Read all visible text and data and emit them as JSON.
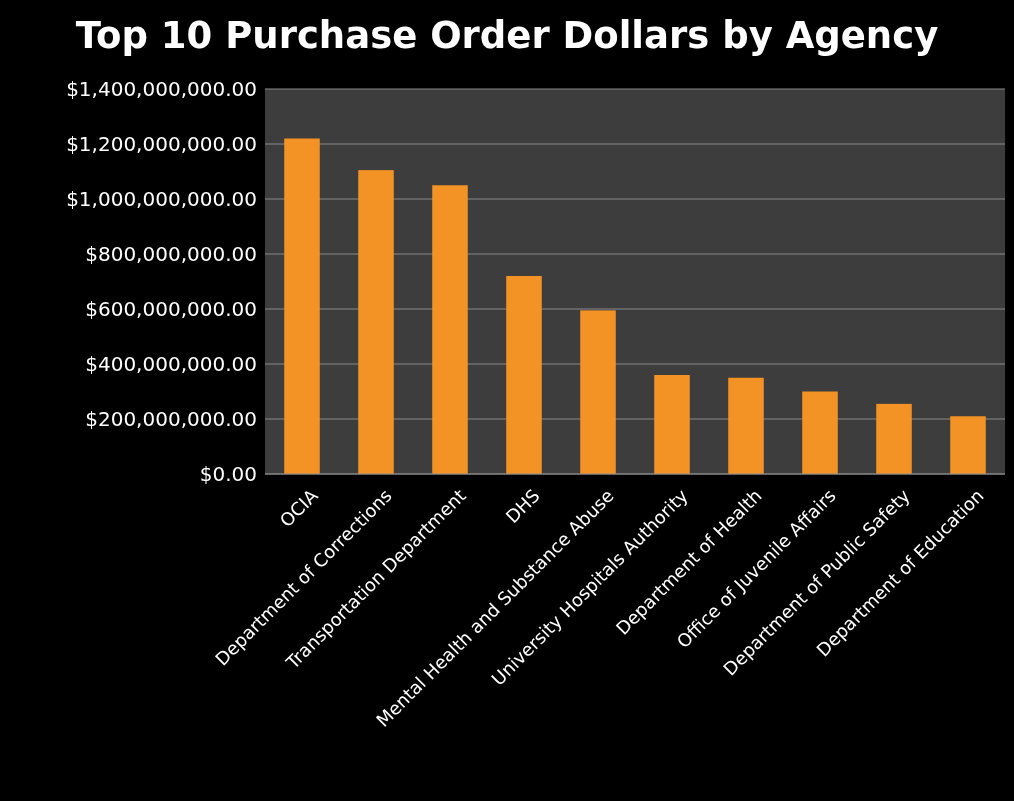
{
  "chart_data": {
    "type": "bar",
    "title": "Top 10 Purchase Order Dollars by Agency",
    "categories": [
      "OCIA",
      "Department of Corrections",
      "Transportation Department",
      "DHS",
      "Mental Health and Substance Abuse",
      "University Hospitals Authority",
      "Department of Health",
      "Office of Juvenile Affairs",
      "Department of Public Safety",
      "Department of Education"
    ],
    "values": [
      1220000000,
      1105000000,
      1050000000,
      720000000,
      595000000,
      360000000,
      350000000,
      300000000,
      255000000,
      210000000
    ],
    "color": "#f39325",
    "ylim": [
      0,
      1400000000
    ],
    "yticks": [
      {
        "value": 0,
        "label": "$0.00"
      },
      {
        "value": 200000000,
        "label": "$200,000,000.00"
      },
      {
        "value": 400000000,
        "label": "$400,000,000.00"
      },
      {
        "value": 600000000,
        "label": "$600,000,000.00"
      },
      {
        "value": 800000000,
        "label": "$800,000,000.00"
      },
      {
        "value": 1000000000,
        "label": "$1,000,000,000.00"
      },
      {
        "value": 1200000000,
        "label": "$1,200,000,000.00"
      },
      {
        "value": 1400000000,
        "label": "$1,400,000,000.00"
      }
    ],
    "grid": "y"
  }
}
